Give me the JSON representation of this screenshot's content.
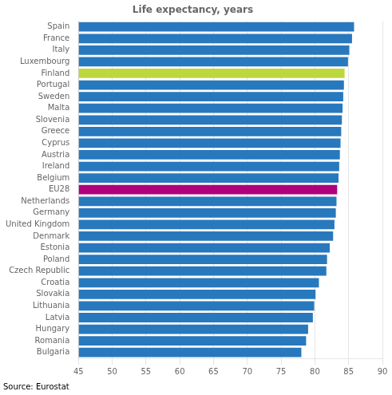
{
  "chart_data": {
    "type": "bar",
    "orientation": "horizontal",
    "title": "Life expectancy, years",
    "categories": [
      "Spain",
      "France",
      "Italy",
      "Luxembourg",
      "Finland",
      "Portugal",
      "Sweden",
      "Malta",
      "Slovenia",
      "Greece",
      "Cyprus",
      "Austria",
      "Ireland",
      "Belgium",
      "EU28",
      "Netherlands",
      "Germany",
      "United Kingdom",
      "Denmark",
      "Estonia",
      "Poland",
      "Czech Republic",
      "Croatia",
      "Slovakia",
      "Lithuania",
      "Latvia",
      "Hungary",
      "Romania",
      "Bulgaria"
    ],
    "values": [
      85.8,
      85.5,
      85.1,
      84.9,
      84.4,
      84.3,
      84.2,
      84.1,
      84.0,
      83.9,
      83.8,
      83.7,
      83.6,
      83.5,
      83.3,
      83.2,
      83.1,
      82.9,
      82.7,
      82.2,
      81.8,
      81.7,
      80.6,
      80.1,
      79.9,
      79.7,
      79.0,
      78.7,
      78.0
    ],
    "colors": [
      "#2878bd",
      "#2878bd",
      "#2878bd",
      "#2878bd",
      "#bdd73c",
      "#2878bd",
      "#2878bd",
      "#2878bd",
      "#2878bd",
      "#2878bd",
      "#2878bd",
      "#2878bd",
      "#2878bd",
      "#2878bd",
      "#b0007e",
      "#2878bd",
      "#2878bd",
      "#2878bd",
      "#2878bd",
      "#2878bd",
      "#2878bd",
      "#2878bd",
      "#2878bd",
      "#2878bd",
      "#2878bd",
      "#2878bd",
      "#2878bd",
      "#2878bd",
      "#2878bd"
    ],
    "xlim": [
      45,
      90
    ],
    "xticks": [
      45,
      50,
      55,
      60,
      65,
      70,
      75,
      80,
      85,
      90
    ],
    "grid": true,
    "annotations": [
      "Source: Eurostat"
    ]
  }
}
